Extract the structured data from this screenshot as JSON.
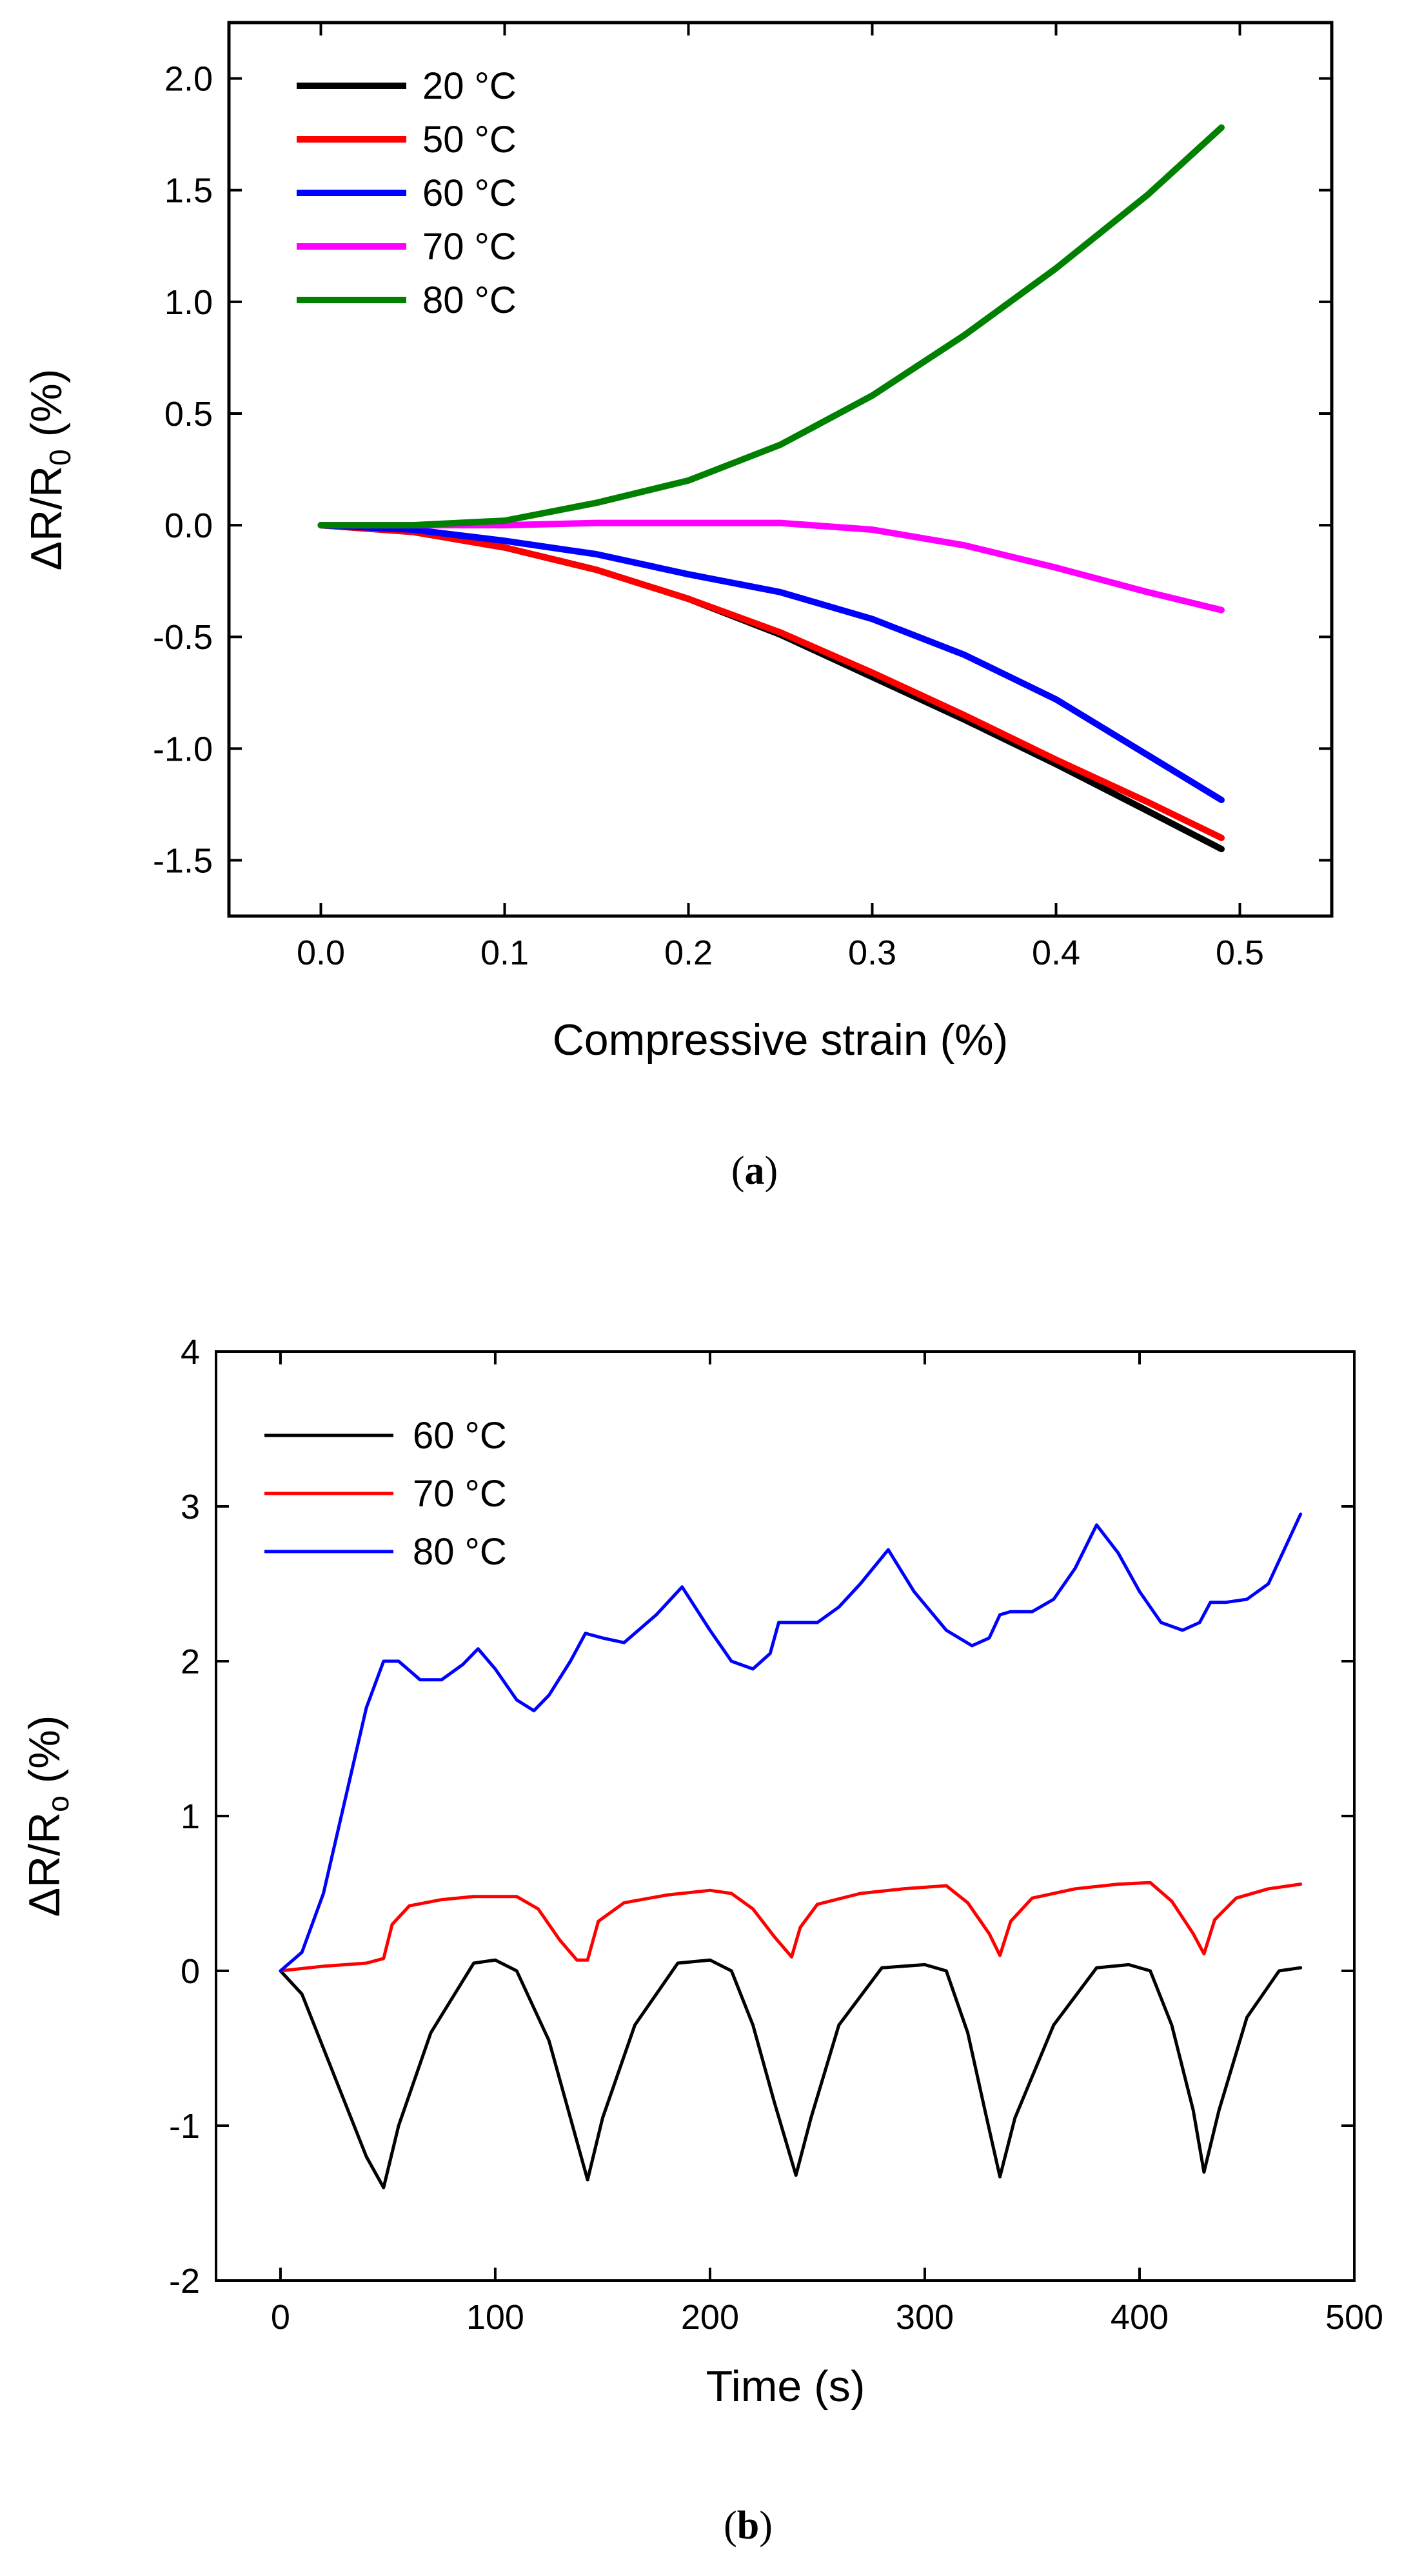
{
  "chart_data": [
    {
      "type": "line",
      "caption_label": "a",
      "xlabel": "Compressive strain (%)",
      "ylabel": "ΔR/R0 (%)",
      "ylabel_main": "ΔR/R",
      "ylabel_sub": "0",
      "ylabel_unit": " (%)",
      "xlim": [
        -0.05,
        0.55
      ],
      "ylim": [
        -1.75,
        2.25
      ],
      "xticks": [
        0.0,
        0.1,
        0.2,
        0.3,
        0.4,
        0.5
      ],
      "xtick_labels": [
        "0.0",
        "0.1",
        "0.2",
        "0.3",
        "0.4",
        "0.5"
      ],
      "yticks": [
        -1.5,
        -1.0,
        -0.5,
        0.0,
        0.5,
        1.0,
        1.5,
        2.0
      ],
      "ytick_labels": [
        "-1.5",
        "-1.0",
        "-0.5",
        "0.0",
        "0.5",
        "1.0",
        "1.5",
        "2.0"
      ],
      "legend_position": "top-left",
      "grid": false,
      "line_width": 10,
      "series": [
        {
          "name": "20 °C",
          "label_value": "20",
          "color": "#000000",
          "x": [
            0.0,
            0.05,
            0.1,
            0.15,
            0.2,
            0.25,
            0.3,
            0.35,
            0.4,
            0.45,
            0.49
          ],
          "y": [
            0.0,
            -0.03,
            -0.1,
            -0.2,
            -0.33,
            -0.49,
            -0.68,
            -0.87,
            -1.07,
            -1.28,
            -1.45
          ]
        },
        {
          "name": "50 °C",
          "label_value": "50",
          "color": "#ff0000",
          "x": [
            0.0,
            0.05,
            0.1,
            0.15,
            0.2,
            0.25,
            0.3,
            0.35,
            0.4,
            0.45,
            0.49
          ],
          "y": [
            0.0,
            -0.03,
            -0.1,
            -0.2,
            -0.33,
            -0.48,
            -0.66,
            -0.85,
            -1.05,
            -1.24,
            -1.4
          ]
        },
        {
          "name": "60 °C",
          "label_value": "60",
          "color": "#0000ff",
          "x": [
            0.0,
            0.05,
            0.1,
            0.15,
            0.2,
            0.25,
            0.3,
            0.35,
            0.4,
            0.45,
            0.49
          ],
          "y": [
            0.0,
            -0.02,
            -0.07,
            -0.13,
            -0.22,
            -0.3,
            -0.42,
            -0.58,
            -0.78,
            -1.03,
            -1.23
          ]
        },
        {
          "name": "70 °C",
          "label_value": "70",
          "color": "#ff00ff",
          "x": [
            0.0,
            0.05,
            0.1,
            0.15,
            0.2,
            0.25,
            0.3,
            0.35,
            0.4,
            0.45,
            0.49
          ],
          "y": [
            0.0,
            0.0,
            0.0,
            0.01,
            0.01,
            0.01,
            -0.02,
            -0.09,
            -0.19,
            -0.3,
            -0.38
          ]
        },
        {
          "name": "80 °C",
          "label_value": "80",
          "color": "#008000",
          "x": [
            0.0,
            0.05,
            0.1,
            0.15,
            0.2,
            0.25,
            0.3,
            0.35,
            0.4,
            0.45,
            0.49
          ],
          "y": [
            0.0,
            0.0,
            0.02,
            0.1,
            0.2,
            0.36,
            0.58,
            0.85,
            1.15,
            1.48,
            1.78
          ]
        }
      ]
    },
    {
      "type": "line",
      "caption_label": "b",
      "xlabel": "Time (s)",
      "ylabel": "ΔR/Ro (%)",
      "ylabel_main": "ΔR/R",
      "ylabel_sub": "o",
      "ylabel_unit": " (%)",
      "xlim": [
        -30,
        500
      ],
      "ylim": [
        -2,
        4
      ],
      "xticks": [
        0,
        100,
        200,
        300,
        400,
        500
      ],
      "xtick_labels": [
        "0",
        "100",
        "200",
        "300",
        "400",
        "500"
      ],
      "yticks": [
        -2,
        -1,
        0,
        1,
        2,
        3,
        4
      ],
      "ytick_labels": [
        "-2",
        "-1",
        "0",
        "1",
        "2",
        "3",
        "4"
      ],
      "legend_position": "top-left",
      "grid": false,
      "line_width": 5,
      "series": [
        {
          "name": "60 °C",
          "label_value": "60 ",
          "color": "#000000",
          "x": [
            0,
            10,
            20,
            30,
            40,
            48,
            55,
            70,
            90,
            100,
            110,
            125,
            135,
            143,
            150,
            165,
            185,
            200,
            210,
            220,
            230,
            240,
            247,
            260,
            280,
            300,
            310,
            320,
            328,
            335,
            342,
            360,
            380,
            395,
            405,
            415,
            425,
            430,
            437,
            450,
            465,
            475
          ],
          "y": [
            0,
            -0.15,
            -0.5,
            -0.85,
            -1.2,
            -1.4,
            -1.0,
            -0.4,
            0.05,
            0.07,
            0.0,
            -0.45,
            -0.95,
            -1.35,
            -0.95,
            -0.35,
            0.05,
            0.07,
            0.0,
            -0.35,
            -0.85,
            -1.32,
            -0.95,
            -0.35,
            0.02,
            0.04,
            0.0,
            -0.4,
            -0.9,
            -1.33,
            -0.95,
            -0.35,
            0.02,
            0.04,
            0.0,
            -0.35,
            -0.9,
            -1.3,
            -0.9,
            -0.3,
            0.0,
            0.02
          ]
        },
        {
          "name": "70 °C",
          "label_value": "70",
          "color": "#ff0000",
          "x": [
            0,
            20,
            40,
            48,
            52,
            60,
            75,
            90,
            110,
            120,
            130,
            138,
            143,
            148,
            160,
            180,
            200,
            210,
            220,
            230,
            238,
            242,
            250,
            270,
            290,
            310,
            320,
            330,
            335,
            340,
            350,
            370,
            390,
            405,
            415,
            425,
            430,
            435,
            445,
            460,
            475
          ],
          "y": [
            0,
            0.03,
            0.05,
            0.08,
            0.3,
            0.42,
            0.46,
            0.48,
            0.48,
            0.4,
            0.2,
            0.07,
            0.07,
            0.32,
            0.44,
            0.49,
            0.52,
            0.5,
            0.4,
            0.22,
            0.09,
            0.28,
            0.43,
            0.5,
            0.53,
            0.55,
            0.44,
            0.24,
            0.1,
            0.32,
            0.47,
            0.53,
            0.56,
            0.57,
            0.45,
            0.24,
            0.11,
            0.33,
            0.47,
            0.53,
            0.56
          ]
        },
        {
          "name": "80 °C",
          "label_value": "80",
          "color": "#0000ff",
          "x": [
            0,
            10,
            20,
            30,
            40,
            48,
            55,
            65,
            75,
            85,
            92,
            100,
            110,
            118,
            125,
            135,
            142,
            150,
            160,
            175,
            187,
            200,
            210,
            220,
            228,
            232,
            240,
            250,
            260,
            270,
            283,
            295,
            310,
            322,
            330,
            335,
            340,
            350,
            360,
            370,
            380,
            390,
            400,
            410,
            420,
            428,
            433,
            440,
            450,
            460,
            470,
            475
          ],
          "y": [
            0,
            0.12,
            0.5,
            1.1,
            1.7,
            2.0,
            2.0,
            1.88,
            1.88,
            1.98,
            2.08,
            1.95,
            1.75,
            1.68,
            1.78,
            2.0,
            2.18,
            2.15,
            2.12,
            2.3,
            2.48,
            2.2,
            2.0,
            1.95,
            2.05,
            2.25,
            2.25,
            2.25,
            2.35,
            2.5,
            2.72,
            2.45,
            2.2,
            2.1,
            2.15,
            2.3,
            2.32,
            2.32,
            2.4,
            2.6,
            2.88,
            2.7,
            2.45,
            2.25,
            2.2,
            2.25,
            2.38,
            2.38,
            2.4,
            2.5,
            2.8,
            2.95
          ]
        }
      ]
    }
  ]
}
